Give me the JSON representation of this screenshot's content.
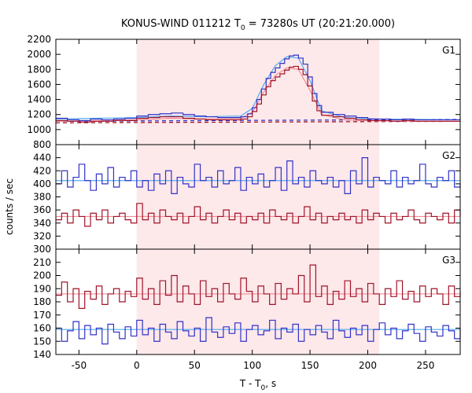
{
  "chart_data": {
    "type": "line",
    "title": "KONUS-WIND 011212 T",
    "title_subscript": "0",
    "title_suffix": " = 73280s UT (20:21:20.000)",
    "xlabel": "T - T",
    "xlabel_subscript": "0",
    "xlabel_suffix": ", s",
    "ylabel": "counts / sec",
    "xlim": [
      -70,
      280
    ],
    "xticks": [
      -50,
      0,
      50,
      100,
      150,
      200,
      250
    ],
    "grid": false,
    "highlight_interval": [
      0,
      210
    ],
    "colors": {
      "blue": "#3232c8",
      "red": "#a01428",
      "fit_blue": "#55aaee",
      "fit_pink": "#f08c96",
      "highlight": "#fde8ea"
    },
    "panels": [
      {
        "label": "G1",
        "ylim": [
          800,
          2200
        ],
        "yticks": [
          800,
          1000,
          1200,
          1400,
          1600,
          1800,
          2000,
          2200
        ],
        "series": [
          {
            "color": "blue",
            "x": [
              -70,
              -60,
              -50,
              -40,
              -30,
              -20,
              -10,
              0,
              10,
              20,
              30,
              40,
              50,
              60,
              70,
              80,
              90,
              96,
              100,
              104,
              108,
              112,
              116,
              120,
              124,
              128,
              132,
              136,
              140,
              144,
              148,
              152,
              156,
              160,
              170,
              180,
              190,
              200,
              210,
              220,
              230,
              240,
              250,
              260,
              270,
              280
            ],
            "values": [
              1150,
              1130,
              1120,
              1140,
              1130,
              1140,
              1150,
              1180,
              1200,
              1210,
              1220,
              1200,
              1180,
              1170,
              1160,
              1160,
              1170,
              1210,
              1290,
              1400,
              1540,
              1680,
              1760,
              1820,
              1880,
              1940,
              1980,
              1990,
              1950,
              1870,
              1700,
              1480,
              1320,
              1230,
              1200,
              1180,
              1160,
              1140,
              1140,
              1130,
              1140,
              1130,
              1130,
              1130,
              1130,
              1130
            ]
          },
          {
            "color": "red",
            "x": [
              -70,
              -60,
              -50,
              -40,
              -30,
              -20,
              -10,
              0,
              10,
              20,
              30,
              40,
              50,
              60,
              70,
              80,
              90,
              96,
              100,
              104,
              108,
              112,
              116,
              120,
              124,
              128,
              132,
              136,
              140,
              144,
              148,
              152,
              156,
              160,
              170,
              180,
              190,
              200,
              210,
              220,
              230,
              240,
              250,
              260,
              270,
              280
            ],
            "values": [
              1120,
              1110,
              1100,
              1110,
              1110,
              1120,
              1120,
              1150,
              1160,
              1170,
              1170,
              1150,
              1140,
              1130,
              1130,
              1130,
              1140,
              1170,
              1240,
              1340,
              1460,
              1570,
              1650,
              1700,
              1740,
              1790,
              1830,
              1840,
              1800,
              1730,
              1580,
              1380,
              1250,
              1190,
              1170,
              1150,
              1130,
              1120,
              1120,
              1110,
              1120,
              1110,
              1110,
              1110,
              1110,
              1110
            ]
          }
        ],
        "fits": [
          {
            "color": "fit_blue",
            "x": [
              -70,
              0,
              30,
              60,
              90,
              100,
              110,
              120,
              130,
              140,
              150,
              160,
              180,
              210,
              280
            ],
            "values": [
              1140,
              1160,
              1180,
              1170,
              1180,
              1280,
              1600,
              1850,
              1970,
              1950,
              1650,
              1250,
              1160,
              1140,
              1130
            ]
          },
          {
            "color": "fit_pink",
            "x": [
              -70,
              0,
              30,
              60,
              90,
              100,
              110,
              120,
              130,
              140,
              150,
              160,
              180,
              210,
              280
            ],
            "values": [
              1110,
              1130,
              1150,
              1140,
              1150,
              1230,
              1500,
              1720,
              1820,
              1800,
              1520,
              1200,
              1130,
              1115,
              1110
            ]
          }
        ],
        "backgrounds": [
          {
            "color": "blue",
            "x": [
              -70,
              280
            ],
            "values": [
              1110,
              1135
            ]
          },
          {
            "color": "red",
            "x": [
              -70,
              280
            ],
            "values": [
              1090,
              1110
            ]
          }
        ]
      },
      {
        "label": "G2",
        "ylim": [
          300,
          460
        ],
        "yticks": [
          300,
          320,
          340,
          360,
          380,
          400,
          420,
          440
        ],
        "series": [
          {
            "color": "blue",
            "x": [
              -70,
              -65,
              -60,
              -55,
              -50,
              -45,
              -40,
              -35,
              -30,
              -25,
              -20,
              -15,
              -10,
              -5,
              0,
              5,
              10,
              15,
              20,
              25,
              30,
              35,
              40,
              45,
              50,
              55,
              60,
              65,
              70,
              75,
              80,
              85,
              90,
              95,
              100,
              105,
              110,
              115,
              120,
              125,
              130,
              135,
              140,
              145,
              150,
              155,
              160,
              165,
              170,
              175,
              180,
              185,
              190,
              195,
              200,
              205,
              210,
              215,
              220,
              225,
              230,
              235,
              240,
              245,
              250,
              255,
              260,
              265,
              270,
              275,
              280
            ],
            "values": [
              400,
              420,
              395,
              410,
              430,
              405,
              390,
              415,
              400,
              425,
              395,
              410,
              405,
              420,
              395,
              405,
              390,
              415,
              400,
              420,
              385,
              410,
              400,
              395,
              430,
              405,
              410,
              395,
              420,
              400,
              405,
              425,
              390,
              410,
              400,
              415,
              395,
              405,
              425,
              390,
              435,
              400,
              410,
              395,
              420,
              405,
              400,
              410,
              395,
              405,
              385,
              420,
              400,
              440,
              395,
              410,
              405,
              400,
              420,
              395,
              410,
              400,
              405,
              430,
              400,
              395,
              410,
              405,
              420,
              395,
              400
            ]
          },
          {
            "color": "red",
            "x": [
              -70,
              -65,
              -60,
              -55,
              -50,
              -45,
              -40,
              -35,
              -30,
              -25,
              -20,
              -15,
              -10,
              -5,
              0,
              5,
              10,
              15,
              20,
              25,
              30,
              35,
              40,
              45,
              50,
              55,
              60,
              65,
              70,
              75,
              80,
              85,
              90,
              95,
              100,
              105,
              110,
              115,
              120,
              125,
              130,
              135,
              140,
              145,
              150,
              155,
              160,
              165,
              170,
              175,
              180,
              185,
              190,
              195,
              200,
              205,
              210,
              215,
              220,
              225,
              230,
              235,
              240,
              245,
              250,
              255,
              260,
              265,
              270,
              275,
              280
            ],
            "values": [
              345,
              355,
              340,
              360,
              350,
              335,
              355,
              345,
              360,
              340,
              350,
              355,
              345,
              340,
              370,
              345,
              355,
              340,
              360,
              350,
              345,
              355,
              340,
              350,
              365,
              345,
              355,
              340,
              350,
              360,
              345,
              355,
              340,
              350,
              345,
              355,
              340,
              360,
              350,
              345,
              355,
              340,
              350,
              365,
              345,
              355,
              340,
              350,
              345,
              355,
              345,
              350,
              340,
              360,
              345,
              355,
              350,
              340,
              355,
              345,
              350,
              360,
              345,
              340,
              355,
              350,
              345,
              355,
              340,
              360,
              350
            ]
          }
        ],
        "fits": [
          {
            "color": "fit_blue",
            "x": [
              -70,
              280
            ],
            "values": [
              405,
              405
            ]
          },
          {
            "color": "fit_pink",
            "x": [
              -70,
              280
            ],
            "values": [
              350,
              350
            ]
          }
        ],
        "backgrounds": []
      },
      {
        "label": "G3",
        "ylim": [
          140,
          220
        ],
        "yticks": [
          140,
          150,
          160,
          170,
          180,
          190,
          200,
          210
        ],
        "series": [
          {
            "color": "red",
            "x": [
              -70,
              -65,
              -60,
              -55,
              -50,
              -45,
              -40,
              -35,
              -30,
              -25,
              -20,
              -15,
              -10,
              -5,
              0,
              5,
              10,
              15,
              20,
              25,
              30,
              35,
              40,
              45,
              50,
              55,
              60,
              65,
              70,
              75,
              80,
              85,
              90,
              95,
              100,
              105,
              110,
              115,
              120,
              125,
              130,
              135,
              140,
              145,
              150,
              155,
              160,
              165,
              170,
              175,
              180,
              185,
              190,
              195,
              200,
              205,
              210,
              215,
              220,
              225,
              230,
              235,
              240,
              245,
              250,
              255,
              260,
              265,
              270,
              275,
              280
            ],
            "values": [
              185,
              195,
              180,
              190,
              175,
              188,
              182,
              192,
              178,
              186,
              190,
              180,
              188,
              184,
              198,
              182,
              190,
              178,
              196,
              185,
              200,
              180,
              192,
              186,
              178,
              196,
              184,
              190,
              180,
              194,
              186,
              182,
              198,
              188,
              180,
              192,
              186,
              178,
              194,
              182,
              190,
              186,
              200,
              180,
              208,
              184,
              192,
              178,
              188,
              182,
              196,
              184,
              190,
              180,
              194,
              186,
              178,
              190,
              184,
              196,
              182,
              188,
              180,
              192,
              184,
              190,
              186,
              178,
              192,
              184,
              188
            ]
          },
          {
            "color": "blue",
            "x": [
              -70,
              -65,
              -60,
              -55,
              -50,
              -45,
              -40,
              -35,
              -30,
              -25,
              -20,
              -15,
              -10,
              -5,
              0,
              5,
              10,
              15,
              20,
              25,
              30,
              35,
              40,
              45,
              50,
              55,
              60,
              65,
              70,
              75,
              80,
              85,
              90,
              95,
              100,
              105,
              110,
              115,
              120,
              125,
              130,
              135,
              140,
              145,
              150,
              155,
              160,
              165,
              170,
              175,
              180,
              185,
              190,
              195,
              200,
              205,
              210,
              215,
              220,
              225,
              230,
              235,
              240,
              245,
              250,
              255,
              260,
              265,
              270,
              275,
              280
            ],
            "values": [
              160,
              150,
              158,
              165,
              152,
              162,
              155,
              160,
              148,
              163,
              157,
              152,
              161,
              154,
              166,
              155,
              160,
              150,
              163,
              157,
              152,
              165,
              158,
              154,
              160,
              150,
              168,
              157,
              153,
              161,
              156,
              164,
              150,
              159,
              162,
              155,
              158,
              166,
              152,
              160,
              157,
              163,
              150,
              159,
              155,
              162,
              157,
              152,
              166,
              158,
              153,
              160,
              155,
              162,
              150,
              159,
              164,
              155,
              160,
              152,
              158,
              163,
              156,
              150,
              161,
              157,
              154,
              162,
              158,
              152,
              160
            ]
          }
        ],
        "fits": [
          {
            "color": "fit_pink",
            "x": [
              -70,
              280
            ],
            "values": [
              186,
              186
            ]
          },
          {
            "color": "fit_blue",
            "x": [
              -70,
              280
            ],
            "values": [
              159,
              159
            ]
          }
        ],
        "backgrounds": []
      }
    ]
  }
}
